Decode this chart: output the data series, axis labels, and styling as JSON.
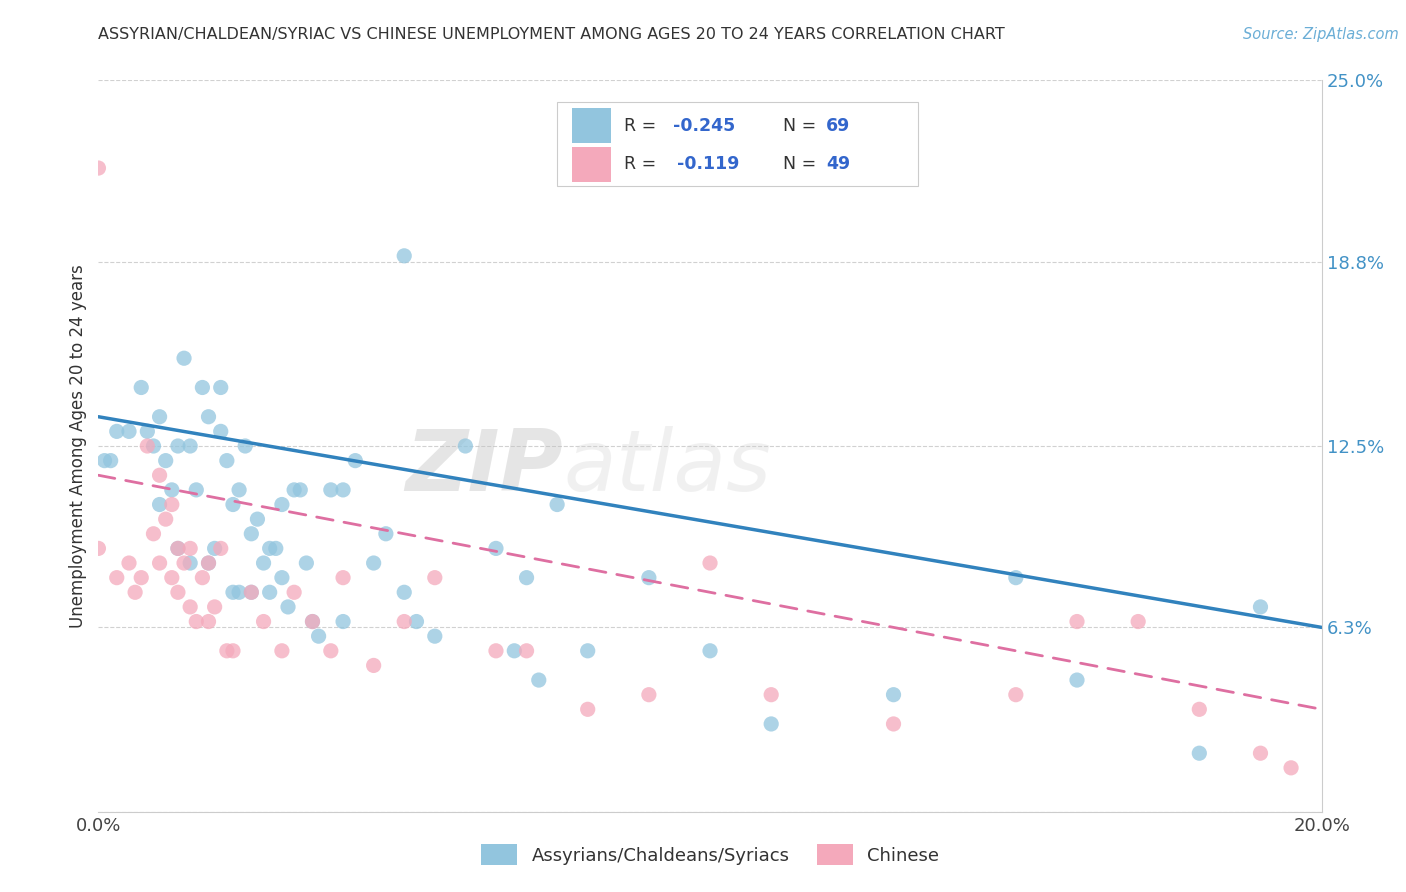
{
  "title": "ASSYRIAN/CHALDEAN/SYRIAC VS CHINESE UNEMPLOYMENT AMONG AGES 20 TO 24 YEARS CORRELATION CHART",
  "source": "Source: ZipAtlas.com",
  "ylabel": "Unemployment Among Ages 20 to 24 years",
  "xlim": [
    0.0,
    0.2
  ],
  "ylim": [
    0.0,
    0.25
  ],
  "xticks": [
    0.0,
    0.05,
    0.1,
    0.15,
    0.2
  ],
  "xticklabels": [
    "0.0%",
    "",
    "",
    "",
    "20.0%"
  ],
  "yticks_right": [
    0.0,
    0.063,
    0.125,
    0.188,
    0.25
  ],
  "yticklabels_right": [
    "",
    "6.3%",
    "12.5%",
    "18.8%",
    "25.0%"
  ],
  "legend_r1": "R = -0.245",
  "legend_n1": "N = 69",
  "legend_r2": "R =  -0.119",
  "legend_n2": "N = 49",
  "color_blue": "#92c5de",
  "color_pink": "#f4a9bb",
  "color_line_blue": "#3182bd",
  "color_line_pink": "#de6fa1",
  "watermark_zip": "ZIP",
  "watermark_atlas": "atlas",
  "legend_label_blue": "Assyrians/Chaldeans/Syriacs",
  "legend_label_pink": "Chinese",
  "blue_scatter_x": [
    0.001,
    0.002,
    0.003,
    0.005,
    0.007,
    0.008,
    0.009,
    0.01,
    0.01,
    0.011,
    0.012,
    0.013,
    0.013,
    0.014,
    0.015,
    0.015,
    0.016,
    0.017,
    0.018,
    0.018,
    0.019,
    0.02,
    0.02,
    0.021,
    0.022,
    0.022,
    0.023,
    0.023,
    0.024,
    0.025,
    0.025,
    0.026,
    0.027,
    0.028,
    0.028,
    0.029,
    0.03,
    0.03,
    0.031,
    0.032,
    0.033,
    0.034,
    0.035,
    0.036,
    0.038,
    0.04,
    0.04,
    0.042,
    0.045,
    0.047,
    0.05,
    0.052,
    0.055,
    0.06,
    0.065,
    0.068,
    0.07,
    0.072,
    0.075,
    0.08,
    0.09,
    0.1,
    0.11,
    0.13,
    0.15,
    0.16,
    0.18,
    0.19,
    0.05
  ],
  "blue_scatter_y": [
    0.12,
    0.12,
    0.13,
    0.13,
    0.145,
    0.13,
    0.125,
    0.135,
    0.105,
    0.12,
    0.11,
    0.09,
    0.125,
    0.155,
    0.085,
    0.125,
    0.11,
    0.145,
    0.085,
    0.135,
    0.09,
    0.13,
    0.145,
    0.12,
    0.105,
    0.075,
    0.075,
    0.11,
    0.125,
    0.075,
    0.095,
    0.1,
    0.085,
    0.09,
    0.075,
    0.09,
    0.08,
    0.105,
    0.07,
    0.11,
    0.11,
    0.085,
    0.065,
    0.06,
    0.11,
    0.11,
    0.065,
    0.12,
    0.085,
    0.095,
    0.075,
    0.065,
    0.06,
    0.125,
    0.09,
    0.055,
    0.08,
    0.045,
    0.105,
    0.055,
    0.08,
    0.055,
    0.03,
    0.04,
    0.08,
    0.045,
    0.02,
    0.07,
    0.19
  ],
  "pink_scatter_x": [
    0.0,
    0.0,
    0.003,
    0.005,
    0.006,
    0.007,
    0.008,
    0.009,
    0.01,
    0.01,
    0.011,
    0.012,
    0.012,
    0.013,
    0.013,
    0.014,
    0.015,
    0.015,
    0.016,
    0.017,
    0.018,
    0.018,
    0.019,
    0.02,
    0.021,
    0.022,
    0.025,
    0.027,
    0.03,
    0.032,
    0.035,
    0.038,
    0.04,
    0.045,
    0.05,
    0.055,
    0.065,
    0.07,
    0.08,
    0.09,
    0.1,
    0.11,
    0.13,
    0.15,
    0.16,
    0.17,
    0.18,
    0.19,
    0.195
  ],
  "pink_scatter_y": [
    0.09,
    0.22,
    0.08,
    0.085,
    0.075,
    0.08,
    0.125,
    0.095,
    0.085,
    0.115,
    0.1,
    0.08,
    0.105,
    0.09,
    0.075,
    0.085,
    0.07,
    0.09,
    0.065,
    0.08,
    0.065,
    0.085,
    0.07,
    0.09,
    0.055,
    0.055,
    0.075,
    0.065,
    0.055,
    0.075,
    0.065,
    0.055,
    0.08,
    0.05,
    0.065,
    0.08,
    0.055,
    0.055,
    0.035,
    0.04,
    0.085,
    0.04,
    0.03,
    0.04,
    0.065,
    0.065,
    0.035,
    0.02,
    0.015
  ],
  "blue_trend": [
    0.135,
    0.063
  ],
  "pink_trend": [
    0.115,
    0.035
  ]
}
